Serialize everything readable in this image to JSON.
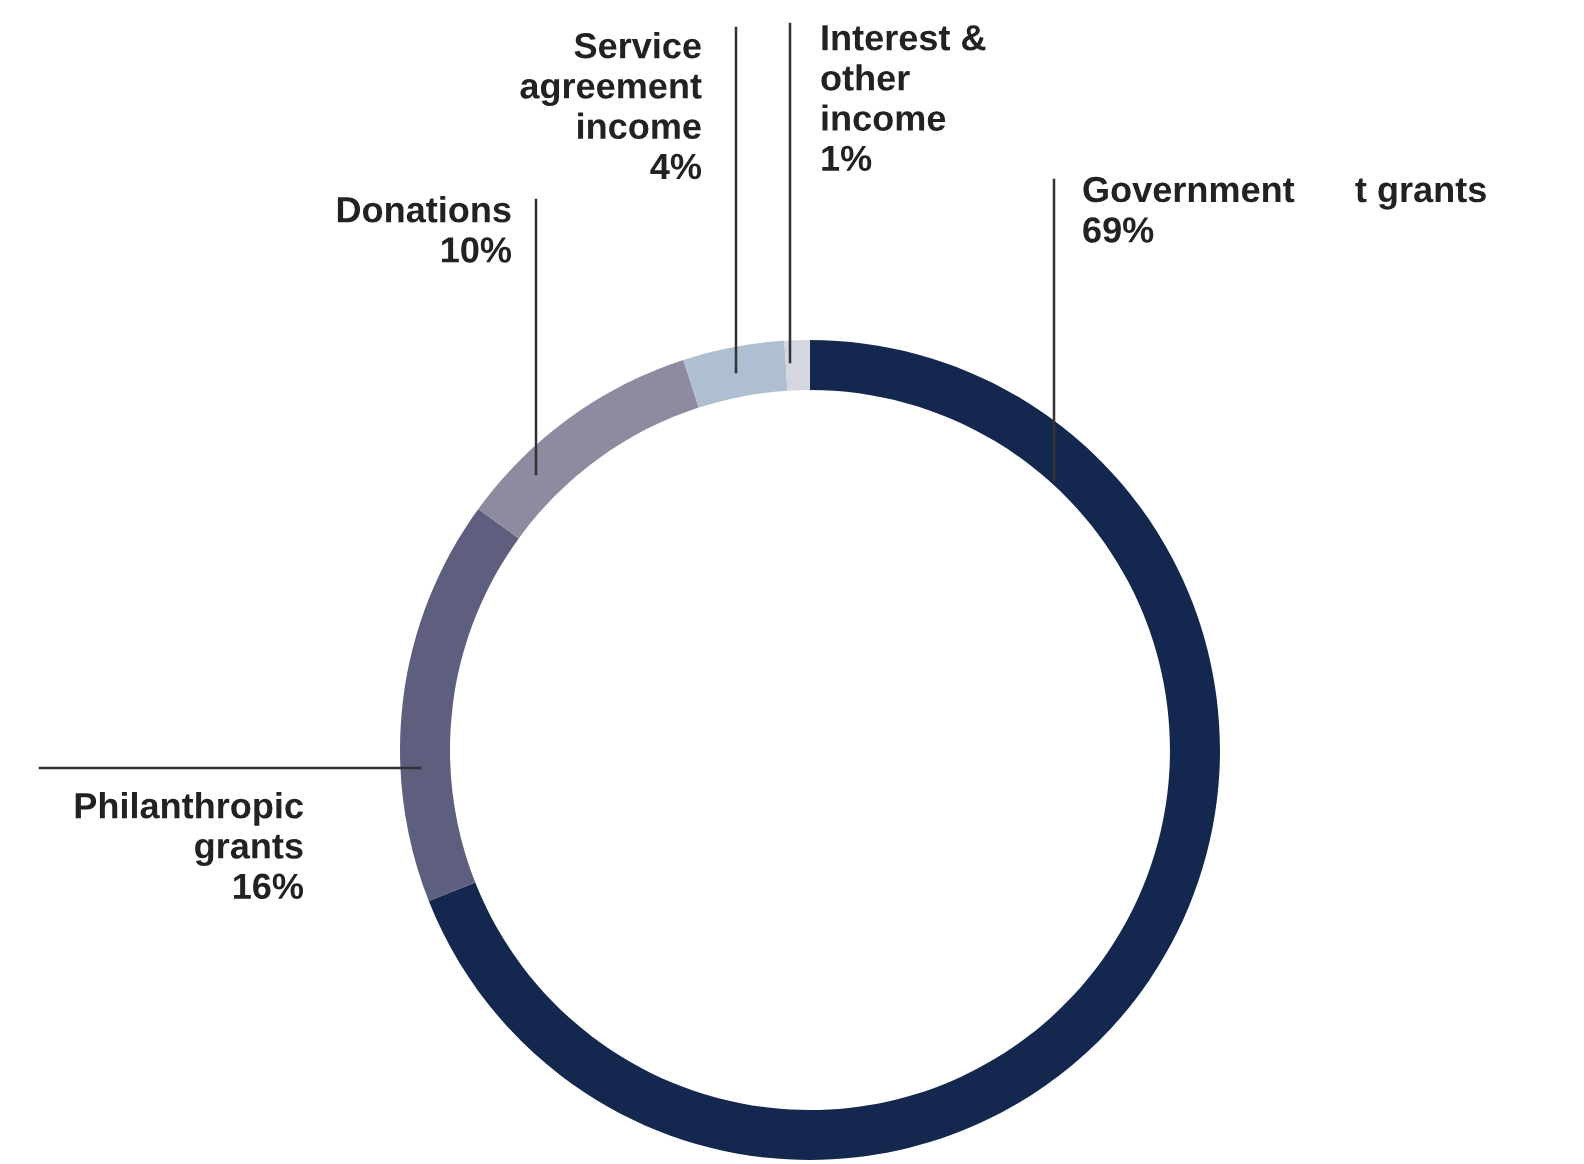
{
  "chart_data": {
    "type": "donut",
    "categories": [
      "Government      t grants",
      "Philanthropic\ngrants",
      "Donations",
      "Service\nagreement\nincome",
      "Interest &\nother\nincome"
    ],
    "values": [
      69,
      16,
      10,
      4,
      1
    ],
    "colors": [
      "#14284f",
      "#5e5f7e",
      "#8e8aa0",
      "#adbfd1",
      "#d4d6e0"
    ],
    "value_labels": [
      "69%",
      "16%",
      "10%",
      "4%",
      "1%"
    ],
    "legend": false
  }
}
